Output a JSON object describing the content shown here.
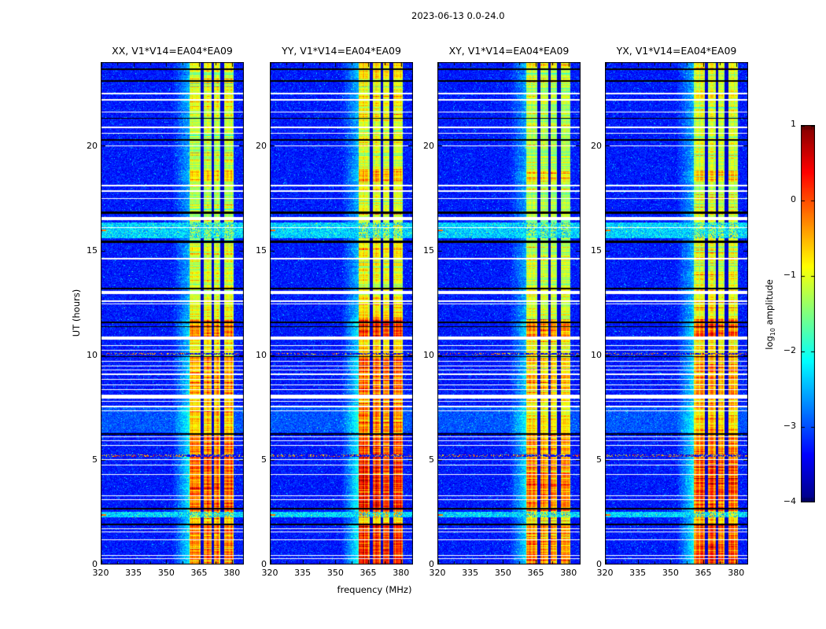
{
  "figure": {
    "background": "#ffffff",
    "text_color": "#000000"
  },
  "chart_data": {
    "type": "heatmap",
    "suptitle": "2023-06-13 0.0-24.0",
    "xlabel": "frequency (MHz)",
    "ylabel": "UT (hours)",
    "panels": [
      {
        "title": "XX, V1*V14=EA04*EA09",
        "band_gain": 0.95
      },
      {
        "title": "YY, V1*V14=EA04*EA09",
        "band_gain": 1.1
      },
      {
        "title": "XY, V1*V14=EA04*EA09",
        "band_gain": 0.88
      },
      {
        "title": "YX, V1*V14=EA04*EA09",
        "band_gain": 1.0
      }
    ],
    "x_range_mhz": [
      320,
      385.5
    ],
    "x_ticks": [
      320,
      335,
      350,
      365,
      380
    ],
    "x_minor_ticks": [
      327.5,
      342.5,
      357.5,
      372.5
    ],
    "y_range_hours": [
      0,
      24
    ],
    "y_ticks": [
      0,
      5,
      10,
      15,
      20
    ],
    "colorbar": {
      "label_prefix": "log",
      "label_sub": "10",
      "label_suffix": " amplitude",
      "ticks": [
        1,
        0,
        -1,
        -2,
        -3,
        -4
      ],
      "range": [
        -4,
        1
      ],
      "colormap": "jet"
    },
    "noise_floor_log10": -3.55,
    "emission_subbands_mhz": [
      [
        360.5,
        365.5
      ],
      [
        367.0,
        370.5
      ],
      [
        371.5,
        374.5
      ],
      [
        376.5,
        380.5
      ]
    ],
    "band_left_ramp_mhz": [
      352.5,
      360.5
    ],
    "band_profile_by_hour": [
      [
        0.0,
        1.9,
        0.78
      ],
      [
        1.9,
        2.55,
        0.55
      ],
      [
        2.55,
        5.15,
        0.8
      ],
      [
        5.15,
        6.2,
        0.72
      ],
      [
        6.2,
        8.0,
        0.6
      ],
      [
        8.0,
        9.9,
        0.68
      ],
      [
        9.9,
        10.8,
        0.52
      ],
      [
        10.8,
        11.7,
        0.75
      ],
      [
        11.7,
        13.2,
        0.5
      ],
      [
        13.2,
        15.4,
        0.45
      ],
      [
        15.4,
        16.5,
        0.38
      ],
      [
        16.5,
        18.3,
        0.4
      ],
      [
        18.3,
        18.8,
        0.58
      ],
      [
        18.8,
        20.0,
        0.4
      ],
      [
        20.0,
        22.0,
        0.42
      ],
      [
        22.0,
        23.5,
        0.45
      ],
      [
        23.5,
        24.0,
        0.52
      ]
    ],
    "flagged_white_rows_hours": [
      [
        22.5,
        2
      ],
      [
        22.2,
        2
      ],
      [
        21.6,
        1
      ],
      [
        20.9,
        2
      ],
      [
        20.6,
        1
      ],
      [
        20.0,
        1
      ],
      [
        18.1,
        2
      ],
      [
        17.85,
        2
      ],
      [
        17.5,
        1
      ],
      [
        16.52,
        4
      ],
      [
        16.1,
        1
      ],
      [
        14.6,
        2
      ],
      [
        13.0,
        4
      ],
      [
        12.6,
        2
      ],
      [
        12.45,
        1
      ],
      [
        10.82,
        4
      ],
      [
        10.45,
        1
      ],
      [
        10.25,
        1
      ],
      [
        9.7,
        1
      ],
      [
        9.5,
        1
      ],
      [
        9.3,
        1
      ],
      [
        9.1,
        2
      ],
      [
        8.85,
        1
      ],
      [
        8.6,
        1
      ],
      [
        8.35,
        1
      ],
      [
        8.02,
        5
      ],
      [
        7.8,
        1
      ],
      [
        7.55,
        2
      ],
      [
        7.35,
        1
      ],
      [
        6.1,
        1
      ],
      [
        5.9,
        1
      ],
      [
        5.7,
        1
      ],
      [
        5.0,
        1
      ],
      [
        4.75,
        1
      ],
      [
        4.3,
        1
      ],
      [
        3.3,
        1
      ],
      [
        3.1,
        1
      ],
      [
        1.7,
        1
      ],
      [
        1.55,
        1
      ],
      [
        1.2,
        1
      ],
      [
        0.42,
        1
      ],
      [
        0.3,
        1
      ]
    ],
    "flagged_black_rows_hours": [
      [
        23.65,
        2
      ],
      [
        23.1,
        2
      ],
      [
        21.3,
        1
      ],
      [
        20.3,
        2
      ],
      [
        16.8,
        3
      ],
      [
        15.42,
        3
      ],
      [
        13.2,
        2
      ],
      [
        11.55,
        2
      ],
      [
        11.35,
        1
      ],
      [
        9.95,
        1
      ],
      [
        6.22,
        2
      ],
      [
        2.65,
        2
      ],
      [
        1.9,
        2
      ]
    ],
    "enhanced_noise_rows_hours": [
      [
        15.6,
        16.35
      ],
      [
        2.25,
        2.5
      ]
    ],
    "interference_dot_rows_hours": [
      [
        5.2,
        3
      ],
      [
        10.05,
        2
      ]
    ],
    "elevated_background_hours": [
      [
        6.3,
        7.6
      ]
    ]
  }
}
